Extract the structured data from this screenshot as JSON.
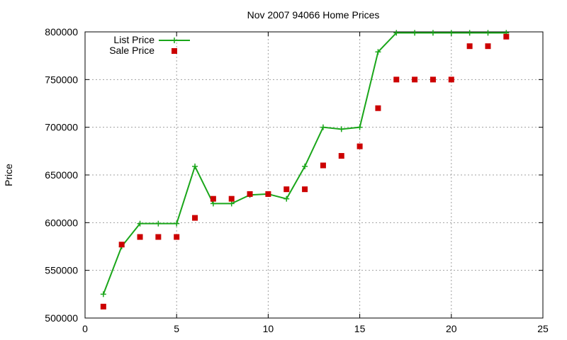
{
  "chart_data": {
    "type": "line",
    "title": "Nov 2007 94066 Home Prices",
    "xlabel": "",
    "ylabel": "Price",
    "xlim": [
      0,
      25
    ],
    "ylim": [
      500000,
      800000
    ],
    "x_ticks": [
      0,
      5,
      10,
      15,
      20,
      25
    ],
    "y_ticks": [
      500000,
      550000,
      600000,
      650000,
      700000,
      750000,
      800000
    ],
    "grid": true,
    "legend_position": "top-left",
    "series": [
      {
        "name": "List Price",
        "style": "lines+crosses",
        "color": "#1aa61a",
        "x": [
          1,
          2,
          3,
          4,
          5,
          6,
          7,
          8,
          9,
          10,
          11,
          12,
          13,
          14,
          15,
          16,
          17,
          18,
          19,
          20,
          21,
          22,
          23
        ],
        "values": [
          525000,
          575000,
          599000,
          599000,
          599000,
          659000,
          620000,
          620000,
          629000,
          630000,
          625000,
          659000,
          700000,
          698000,
          700000,
          779000,
          799000,
          799000,
          799000,
          799000,
          799000,
          799000,
          799000
        ]
      },
      {
        "name": "Sale Price",
        "style": "squares",
        "color": "#cc0000",
        "x": [
          1,
          2,
          3,
          4,
          5,
          6,
          7,
          8,
          9,
          10,
          11,
          12,
          13,
          14,
          15,
          16,
          17,
          18,
          19,
          20,
          21,
          22,
          23
        ],
        "values": [
          512000,
          577000,
          585000,
          585000,
          585000,
          605000,
          625000,
          625000,
          630000,
          630000,
          635000,
          635000,
          660000,
          670000,
          680000,
          720000,
          750000,
          750000,
          750000,
          750000,
          785000,
          785000,
          795000
        ]
      }
    ]
  }
}
